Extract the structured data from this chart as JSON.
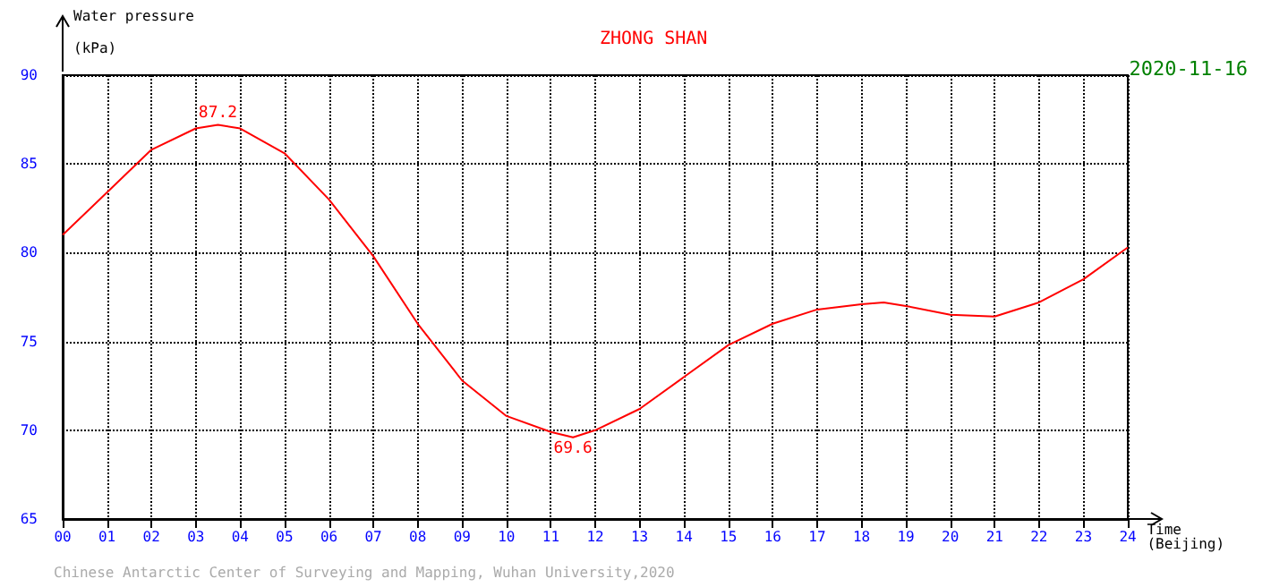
{
  "chart_data": {
    "type": "line",
    "title": "ZHONG SHAN",
    "subtitle": "2020-11-16",
    "ylabel": "Water pressure (kPa)",
    "xlabel": "Time (Beijing)",
    "annotations": [
      {
        "text": "87.2",
        "x": 3.5,
        "y": 87.2
      },
      {
        "text": "69.6",
        "x": 11.5,
        "y": 69.6
      },
      "Chinese Antarctic Center of Surveying and Mapping, Wuhan University,2020"
    ],
    "x": [
      0,
      1,
      2,
      3,
      3.5,
      4,
      5,
      6,
      7,
      8,
      9,
      10,
      11,
      11.5,
      12,
      13,
      14,
      15,
      16,
      17,
      18,
      18.5,
      19,
      20,
      21,
      22,
      23,
      24
    ],
    "series": [
      {
        "color": "#ff0000",
        "values": [
          81.0,
          83.4,
          85.8,
          87.0,
          87.2,
          87.0,
          85.6,
          83.0,
          79.8,
          76.0,
          72.8,
          70.8,
          69.9,
          69.6,
          70.0,
          71.2,
          73.0,
          74.8,
          76.0,
          76.8,
          77.1,
          77.2,
          77.0,
          76.5,
          76.4,
          77.2,
          78.5,
          80.3
        ]
      }
    ],
    "xlim": [
      0,
      24
    ],
    "xticks": [
      {
        "value": 0,
        "label": "00"
      },
      {
        "value": 1,
        "label": "01"
      },
      {
        "value": 2,
        "label": "02"
      },
      {
        "value": 3,
        "label": "03"
      },
      {
        "value": 4,
        "label": "04"
      },
      {
        "value": 5,
        "label": "05"
      },
      {
        "value": 6,
        "label": "06"
      },
      {
        "value": 7,
        "label": "07"
      },
      {
        "value": 8,
        "label": "08"
      },
      {
        "value": 9,
        "label": "09"
      },
      10,
      11,
      12,
      13,
      14,
      15,
      16,
      17,
      18,
      19,
      20,
      21,
      22,
      23,
      24
    ],
    "ylim": [
      65,
      90
    ],
    "yticks": [
      65,
      70,
      75,
      80,
      85,
      90
    ],
    "grid": true,
    "marker": "none",
    "line_style": "solid"
  }
}
